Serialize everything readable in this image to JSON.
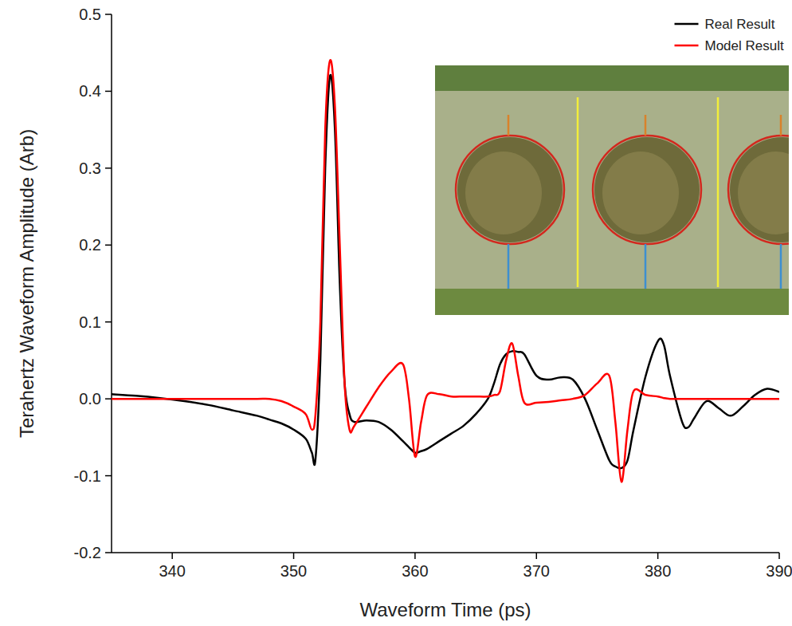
{
  "chart_data": {
    "type": "line",
    "x_label": "Waveform Time (ps)",
    "y_label": "Terahertz Waveform Amplitude (Arb)",
    "xlim": [
      335,
      390
    ],
    "xticks": [
      340,
      350,
      360,
      370,
      380,
      390
    ],
    "ylim": [
      -0.2,
      0.5
    ],
    "yticks": [
      -0.2,
      -0.1,
      {
        "value": 0,
        "label": "0.0"
      },
      0.1,
      0.2,
      0.3,
      0.4,
      0.5
    ],
    "grid": false,
    "legend": "upper right",
    "x": [
      335,
      337,
      339,
      341,
      343,
      345,
      347,
      348,
      349,
      350,
      351,
      351.5,
      351.8,
      352.2,
      352.6,
      353,
      353.4,
      353.8,
      354.2,
      354.6,
      355,
      356,
      357,
      358,
      359,
      359.5,
      360,
      360.5,
      361,
      362,
      363,
      364,
      365,
      366,
      366.5,
      367,
      367.5,
      368,
      368.5,
      369,
      370,
      371,
      372,
      373,
      374,
      375,
      376,
      376.5,
      377,
      377.5,
      378,
      379,
      380,
      380.5,
      381,
      382,
      382.5,
      383,
      384,
      385,
      386,
      387,
      388,
      389,
      390
    ],
    "series": [
      {
        "name": "Real Result",
        "color": "#000000",
        "line_style": "solid",
        "values": [
          0.006,
          0.004,
          0.001,
          -0.003,
          -0.008,
          -0.015,
          -0.022,
          -0.027,
          -0.032,
          -0.04,
          -0.052,
          -0.07,
          -0.078,
          0.05,
          0.3,
          0.42,
          0.35,
          0.15,
          0.02,
          -0.02,
          -0.03,
          -0.028,
          -0.03,
          -0.04,
          -0.055,
          -0.063,
          -0.07,
          -0.068,
          -0.065,
          -0.055,
          -0.045,
          -0.035,
          -0.02,
          0.0,
          0.02,
          0.045,
          0.058,
          0.062,
          0.061,
          0.058,
          0.03,
          0.025,
          0.028,
          0.025,
          0.0,
          -0.04,
          -0.08,
          -0.088,
          -0.09,
          -0.08,
          -0.04,
          0.03,
          0.075,
          0.07,
          0.03,
          -0.03,
          -0.037,
          -0.025,
          -0.003,
          -0.012,
          -0.022,
          -0.01,
          0.005,
          0.013,
          0.009
        ]
      },
      {
        "name": "Model Result",
        "color": "#ff0000",
        "line_style": "solid",
        "values": [
          0,
          0,
          0,
          0,
          0,
          0,
          0,
          0,
          -0.003,
          -0.01,
          -0.02,
          -0.04,
          -0.02,
          0.1,
          0.35,
          0.44,
          0.38,
          0.2,
          0.02,
          -0.04,
          -0.035,
          -0.01,
          0.015,
          0.035,
          0.045,
          0.0,
          -0.075,
          -0.03,
          0.005,
          0.006,
          0.003,
          0.003,
          0.003,
          0.003,
          0.005,
          0.01,
          0.05,
          0.072,
          0.03,
          -0.005,
          -0.005,
          -0.004,
          -0.002,
          0.0,
          0.005,
          0.02,
          0.03,
          -0.03,
          -0.108,
          -0.04,
          0.01,
          0.005,
          0.003,
          0.001,
          0.0,
          0,
          0,
          0,
          0,
          0,
          0,
          0,
          0,
          0,
          0
        ]
      }
    ]
  }
}
